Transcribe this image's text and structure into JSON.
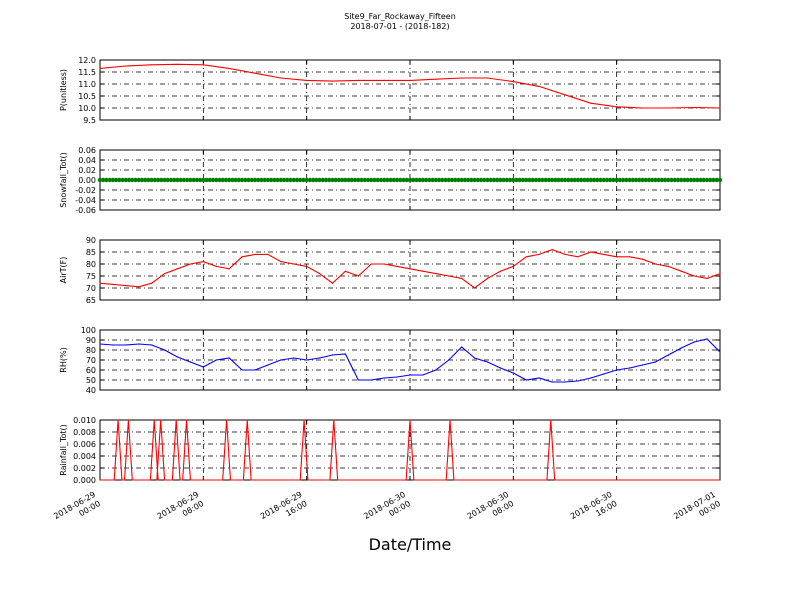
{
  "header": {
    "title": "Site9_Far_Rockaway_Fifteen",
    "subtitle": "2018-07-01 - (2018-182)"
  },
  "xaxis": {
    "label": "Date/Time",
    "tick_dates": [
      "2018-06-29",
      "2018-06-29",
      "2018-06-29",
      "2018-06-30",
      "2018-06-30",
      "2018-06-30",
      "2018-07-01"
    ],
    "tick_times": [
      "00:00",
      "08:00",
      "16:00",
      "00:00",
      "08:00",
      "16:00",
      "00:00"
    ]
  },
  "colors": {
    "red": "#ff0000",
    "green": "#008000",
    "blue": "#0000ff"
  },
  "chart_data": [
    {
      "type": "line",
      "ylabel": "P(unitless)",
      "color": "#ff0000",
      "ylim": [
        9.5,
        12.0
      ],
      "yticks": [
        "9.5",
        "10.0",
        "10.5",
        "11.0",
        "11.5",
        "12.0"
      ],
      "grid": true,
      "x_hours": [
        0,
        2,
        4,
        6,
        8,
        10,
        12,
        14,
        16,
        18,
        20,
        22,
        24,
        26,
        28,
        30,
        32,
        34,
        36,
        38,
        40,
        42,
        44,
        46,
        48
      ],
      "values": [
        11.65,
        11.75,
        11.8,
        11.82,
        11.8,
        11.65,
        11.45,
        11.25,
        11.15,
        11.12,
        11.15,
        11.15,
        11.15,
        11.2,
        11.25,
        11.25,
        11.1,
        10.9,
        10.55,
        10.2,
        10.05,
        10.0,
        10.0,
        10.02,
        10.0
      ]
    },
    {
      "type": "scatter",
      "ylabel": "Snowfall_Tot()",
      "color": "#008000",
      "ylim": [
        -0.06,
        0.06
      ],
      "yticks": [
        "-0.06",
        "-0.04",
        "-0.02",
        "0.00",
        "0.02",
        "0.04",
        "0.06"
      ],
      "grid": true,
      "constant_value": 0.0
    },
    {
      "type": "line",
      "ylabel": "AirT(F)",
      "color": "#ff0000",
      "ylim": [
        65,
        90
      ],
      "yticks": [
        "65",
        "70",
        "75",
        "80",
        "85",
        "90"
      ],
      "grid": true,
      "x_hours": [
        0,
        1,
        2,
        3,
        4,
        5,
        6,
        7,
        8,
        9,
        10,
        11,
        12,
        13,
        14,
        15,
        16,
        17,
        18,
        19,
        20,
        21,
        22,
        23,
        24,
        25,
        26,
        27,
        28,
        29,
        30,
        31,
        32,
        33,
        34,
        35,
        36,
        37,
        38,
        39,
        40,
        41,
        42,
        43,
        44,
        45,
        46,
        47,
        48
      ],
      "values": [
        72,
        71.5,
        71,
        70.5,
        72,
        76,
        78,
        80,
        81,
        79,
        78,
        83,
        84,
        84,
        81,
        80,
        79,
        76,
        72,
        77,
        75,
        80,
        80,
        79,
        78,
        77,
        76,
        75,
        74,
        70,
        74,
        77,
        79,
        83,
        84,
        86,
        84,
        83,
        85,
        84,
        83,
        83,
        82,
        80,
        79,
        77,
        75,
        74,
        76
      ]
    },
    {
      "type": "line",
      "ylabel": "RH(%)",
      "color": "#0000ff",
      "ylim": [
        40,
        100
      ],
      "yticks": [
        "40",
        "50",
        "60",
        "70",
        "80",
        "90",
        "100"
      ],
      "grid": true,
      "x_hours": [
        0,
        1,
        2,
        3,
        4,
        5,
        6,
        7,
        8,
        9,
        10,
        11,
        12,
        13,
        14,
        15,
        16,
        17,
        18,
        19,
        20,
        21,
        22,
        23,
        24,
        25,
        26,
        27,
        28,
        29,
        30,
        31,
        32,
        33,
        34,
        35,
        36,
        37,
        38,
        39,
        40,
        41,
        42,
        43,
        44,
        45,
        46,
        47,
        48
      ],
      "values": [
        86,
        85,
        85,
        86,
        85,
        80,
        73,
        68,
        63,
        70,
        72,
        60,
        60,
        65,
        70,
        72,
        70,
        72,
        75,
        76,
        50,
        50,
        52,
        53,
        55,
        55,
        60,
        70,
        83,
        72,
        68,
        62,
        57,
        50,
        52,
        48,
        48,
        49,
        52,
        56,
        60,
        62,
        65,
        68,
        75,
        82,
        88,
        91,
        78
      ]
    },
    {
      "type": "line",
      "ylabel": "Rainfall_Tot()",
      "color": "#ff0000",
      "ylim": [
        0.0,
        0.01
      ],
      "yticks": [
        "0.000",
        "0.002",
        "0.004",
        "0.006",
        "0.008",
        "0.010"
      ],
      "grid": true,
      "spike_hours": [
        1.4,
        2.2,
        4.2,
        4.7,
        5.9,
        6.7,
        9.8,
        11.4,
        15.8,
        18.1,
        24.0,
        27.1,
        34.9
      ],
      "spike_value": 0.01,
      "baseline": 0.0
    }
  ]
}
